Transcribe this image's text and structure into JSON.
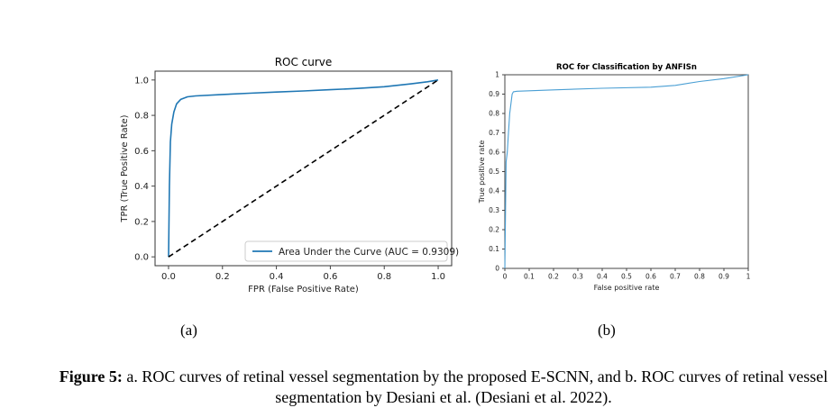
{
  "chart_data": [
    {
      "type": "line",
      "title": "ROC curve",
      "xlabel": "FPR (False Positive Rate)",
      "ylabel": "TPR (True Positive Rate)",
      "xlim": [
        -0.05,
        1.05
      ],
      "ylim": [
        -0.05,
        1.05
      ],
      "xticks": [
        "0.0",
        "0.2",
        "0.4",
        "0.6",
        "0.8",
        "1.0"
      ],
      "yticks": [
        "0.0",
        "0.2",
        "0.4",
        "0.6",
        "0.8",
        "1.0"
      ],
      "legend": "lower-right",
      "series": [
        {
          "name": "Area Under the Curve (AUC = 0.9309)",
          "style": "solid",
          "color": "#1f77b4",
          "x": [
            0,
            0.003,
            0.007,
            0.012,
            0.02,
            0.03,
            0.045,
            0.07,
            0.1,
            0.2,
            0.3,
            0.4,
            0.5,
            0.6,
            0.7,
            0.8,
            0.9,
            0.96,
            1.0
          ],
          "y": [
            0,
            0.4,
            0.65,
            0.75,
            0.82,
            0.865,
            0.89,
            0.905,
            0.91,
            0.918,
            0.925,
            0.932,
            0.938,
            0.945,
            0.952,
            0.962,
            0.978,
            0.99,
            1.0
          ]
        },
        {
          "name": "",
          "style": "dashed",
          "color": "#000000",
          "x": [
            0,
            1
          ],
          "y": [
            0,
            1
          ]
        }
      ]
    },
    {
      "type": "line",
      "title": "ROC for Classification by ANFISn",
      "xlabel": "False positive rate",
      "ylabel": "True positive rate",
      "xlim": [
        0,
        1
      ],
      "ylim": [
        0,
        1
      ],
      "xticks": [
        "0",
        "0.1",
        "0.2",
        "0.3",
        "0.4",
        "0.5",
        "0.6",
        "0.7",
        "0.8",
        "0.9",
        "1"
      ],
      "yticks": [
        "0",
        "0.1",
        "0.2",
        "0.3",
        "0.4",
        "0.5",
        "0.6",
        "0.7",
        "0.8",
        "0.9",
        "1"
      ],
      "series": [
        {
          "name": "",
          "style": "solid",
          "color": "#4a9fd4",
          "x": [
            0,
            0.005,
            0.01,
            0.015,
            0.02,
            0.03,
            0.035,
            0.05,
            0.2,
            0.4,
            0.6,
            0.7,
            0.8,
            0.9,
            1.0
          ],
          "y": [
            0,
            0.55,
            0.6,
            0.7,
            0.8,
            0.9,
            0.912,
            0.915,
            0.922,
            0.93,
            0.936,
            0.945,
            0.965,
            0.98,
            1.0
          ]
        }
      ]
    }
  ],
  "labels": {
    "a": "(a)",
    "b": "(b)"
  },
  "caption": {
    "bold": "Figure 5:",
    "text": " a. ROC curves of retinal vessel segmentation by the proposed E-SCNN, and b. ROC curves of retinal vessel segmentation by Desiani et al. (Desiani et al. 2022)."
  }
}
